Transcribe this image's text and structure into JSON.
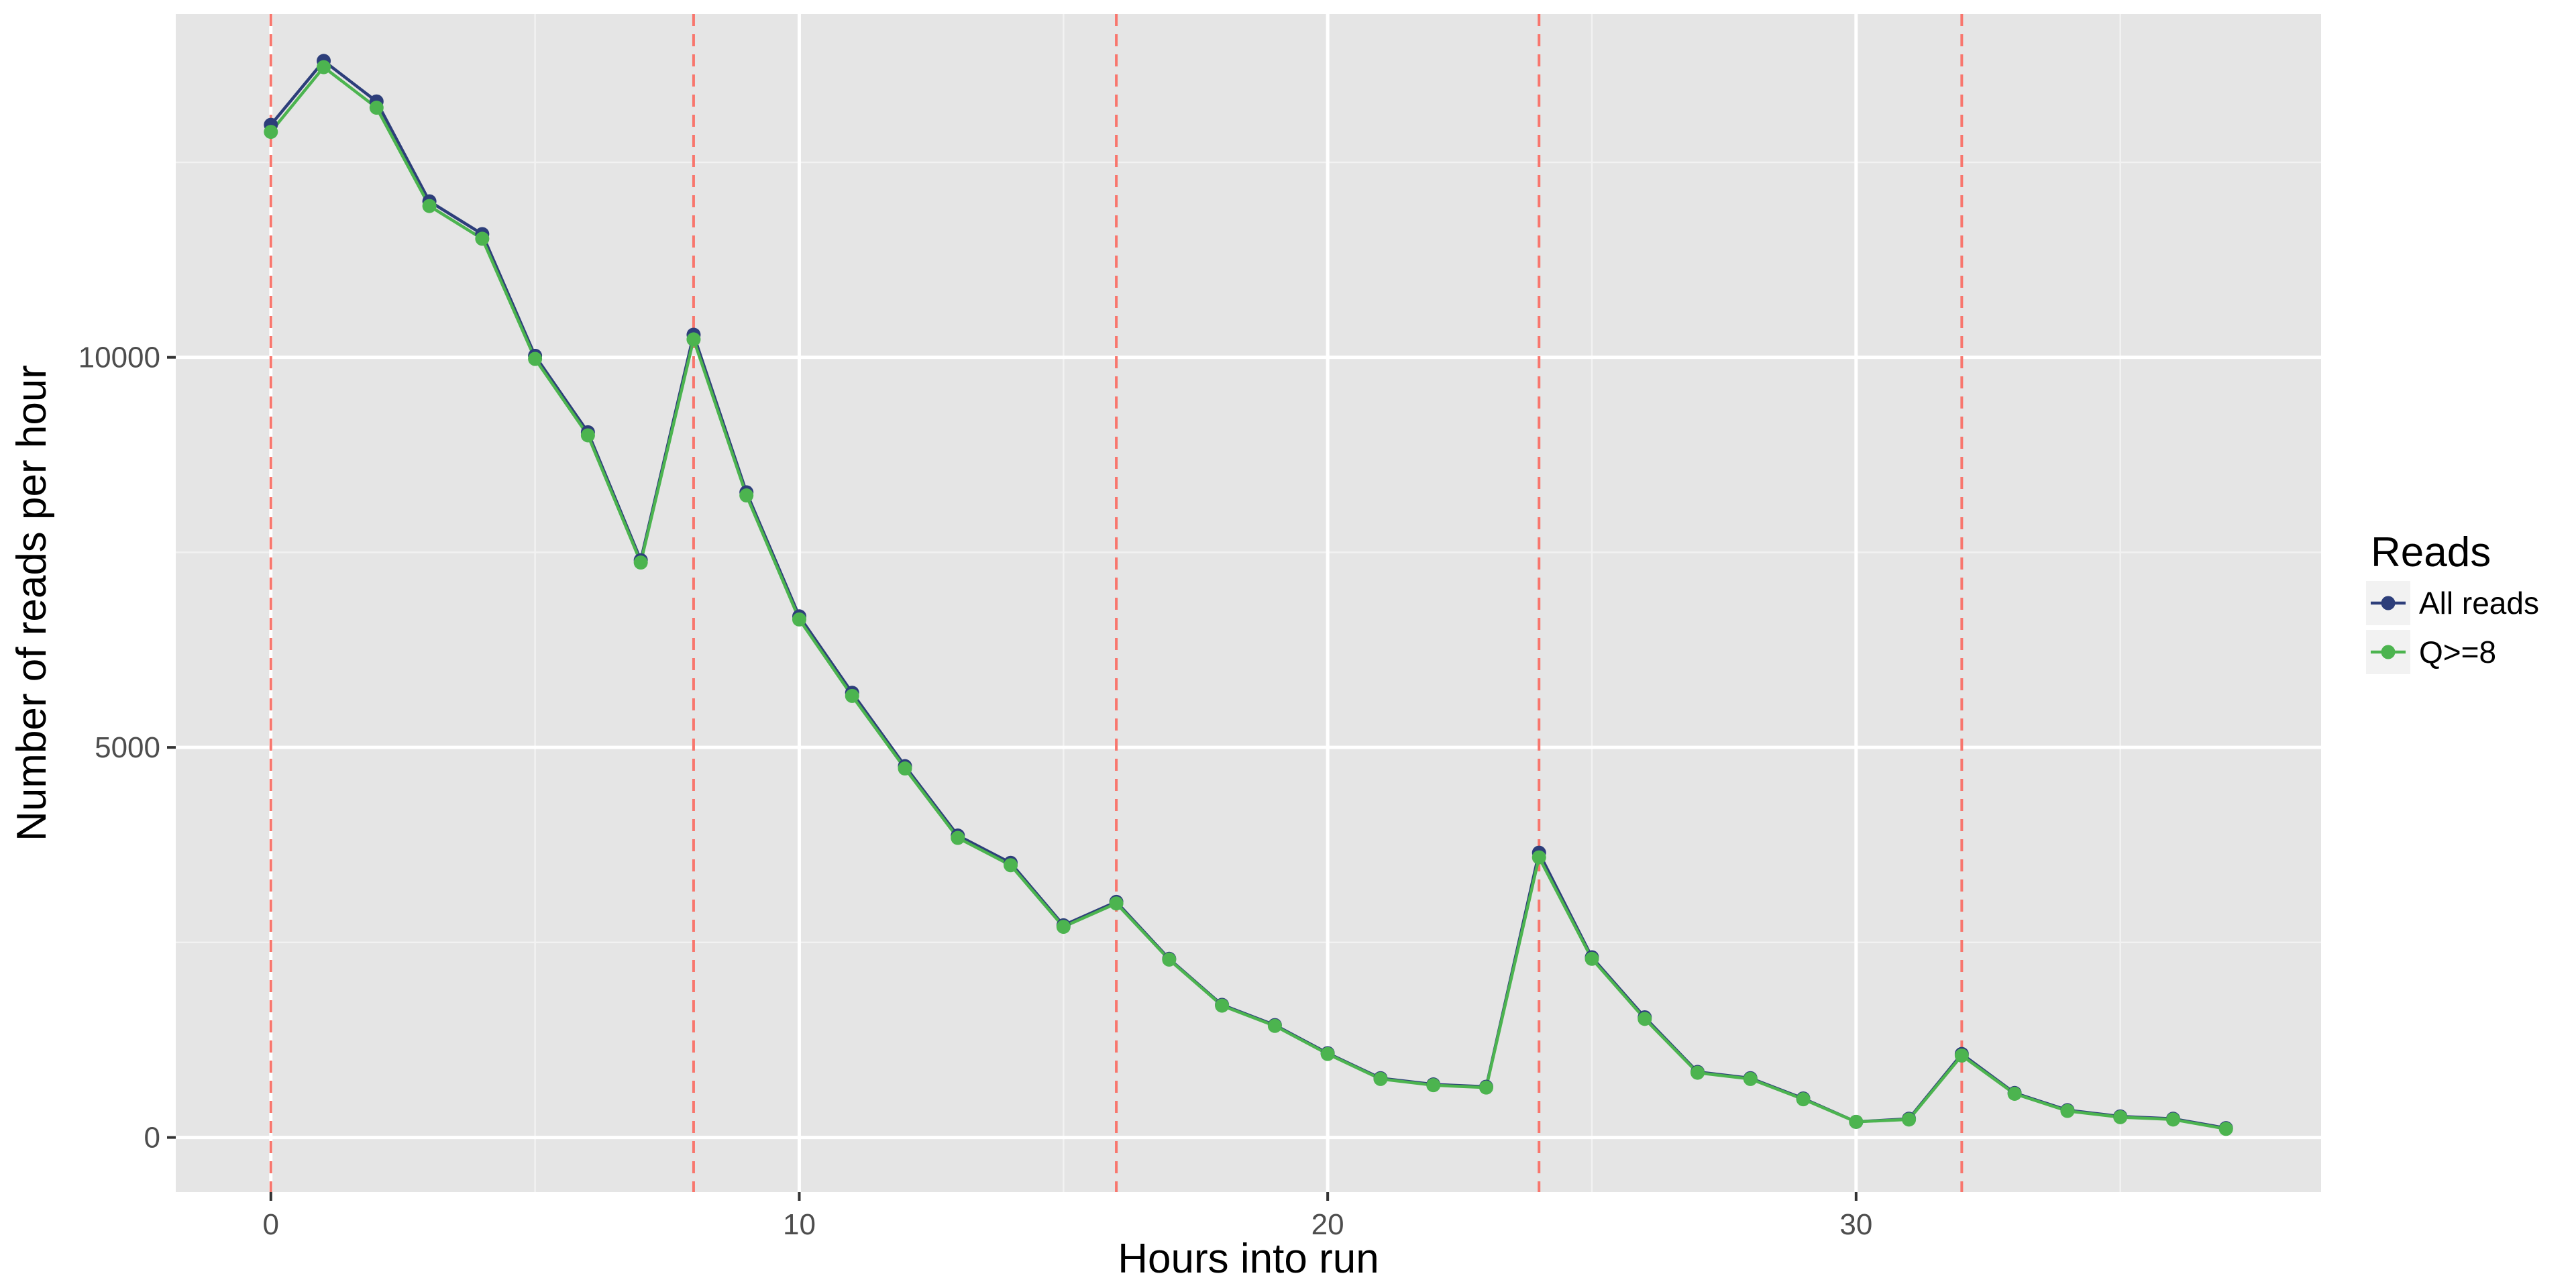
{
  "chart_data": {
    "type": "line",
    "title": "",
    "xlabel": "Hours into run",
    "ylabel": "Number of reads per hour",
    "xlim": [
      -1.8,
      38.8
    ],
    "ylim": [
      -700,
      14400
    ],
    "x_ticks": [
      0,
      10,
      20,
      30
    ],
    "y_ticks": [
      0,
      5000,
      10000
    ],
    "grid": true,
    "legend": {
      "title": "Reads",
      "position": "right"
    },
    "vlines": {
      "x": [
        0,
        8,
        16,
        24,
        32
      ],
      "color": "#F8766D",
      "style": "dashed"
    },
    "x": [
      0,
      1,
      2,
      3,
      4,
      5,
      6,
      7,
      8,
      9,
      10,
      11,
      12,
      13,
      14,
      15,
      16,
      17,
      18,
      19,
      20,
      21,
      22,
      23,
      24,
      25,
      26,
      27,
      28,
      29,
      30,
      31,
      32,
      33,
      34,
      35,
      36,
      37
    ],
    "series": [
      {
        "name": "All reads",
        "color": "#2D3E7A",
        "values": [
          12980,
          13800,
          13280,
          12000,
          11580,
          10020,
          9040,
          7400,
          10290,
          8270,
          6680,
          5700,
          4760,
          3870,
          3520,
          2720,
          3020,
          2290,
          1700,
          1440,
          1080,
          760,
          680,
          650,
          3650,
          2310,
          1540,
          840,
          760,
          500,
          200,
          240,
          1070,
          570,
          350,
          270,
          240,
          120
        ]
      },
      {
        "name": "Q>=8",
        "color": "#4CB44F",
        "values": [
          12890,
          13720,
          13200,
          11940,
          11520,
          9980,
          9000,
          7370,
          10230,
          8230,
          6640,
          5660,
          4730,
          3840,
          3490,
          2700,
          3000,
          2280,
          1690,
          1430,
          1070,
          750,
          670,
          640,
          3590,
          2290,
          1520,
          830,
          750,
          490,
          200,
          230,
          1050,
          560,
          340,
          260,
          230,
          110
        ]
      }
    ]
  }
}
